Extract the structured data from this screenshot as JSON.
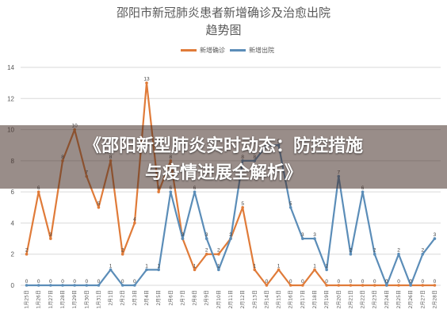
{
  "chart_data": {
    "type": "line",
    "title": "邵阳市新冠肺炎患者新增确诊及治愈出院",
    "subtitle": "趋势图",
    "ylim": [
      0,
      14
    ],
    "yticks": [
      "0",
      "2",
      "4",
      "6",
      "8",
      "10",
      "12",
      "14"
    ],
    "grid": true,
    "legend_position": "top-center",
    "categories": [
      "1月25日",
      "1月26日",
      "1月27日",
      "1月28日",
      "1月29日",
      "1月30日",
      "1月31日",
      "2月1日",
      "2月2日",
      "2月3日",
      "2月4日",
      "2月5日",
      "2月6日",
      "2月7日",
      "2月8日",
      "2月9日",
      "2月10日",
      "2月11日",
      "2月12日",
      "2月13日",
      "2月14日",
      "2月15日",
      "2月16日",
      "2月17日",
      "2月18日",
      "2月19日",
      "2月20日",
      "2月21日",
      "2月22日",
      "2月23日",
      "2月24日",
      "2月25日",
      "2月26日",
      "2月27日",
      "2月28日"
    ],
    "series": [
      {
        "name": "新增确诊",
        "color": "#E07B39",
        "values": [
          2,
          6,
          3,
          8,
          10,
          7,
          5,
          8,
          2,
          4,
          13,
          6,
          8,
          3,
          1,
          2,
          2,
          3,
          5,
          1,
          0,
          1,
          0,
          0,
          1,
          0,
          0,
          0,
          0,
          0,
          0,
          0,
          0,
          0,
          0
        ],
        "labels": [
          "2",
          "6",
          "3",
          "8",
          "10",
          "7",
          "5",
          "8",
          "2",
          "4",
          "13",
          "6",
          "8",
          "3",
          "1",
          "2",
          "2",
          "3",
          "5",
          "1",
          "0",
          "1",
          "0",
          "0",
          "1",
          "0",
          "0",
          "0",
          "0",
          "0",
          "0",
          "0",
          "0",
          "0",
          "0"
        ]
      },
      {
        "name": "新增出院",
        "color": "#5B8DB8",
        "values": [
          0,
          0,
          0,
          0,
          0,
          0,
          0,
          1,
          0,
          0,
          1,
          1,
          6,
          3,
          6,
          3,
          1,
          3,
          8,
          8,
          9,
          9,
          5,
          3,
          3,
          1,
          7,
          2,
          6,
          2,
          0,
          2,
          0,
          2,
          3
        ],
        "labels": [
          "0",
          "0",
          "0",
          "0",
          "0",
          "0",
          "0",
          "1",
          "0",
          "0",
          "1",
          "1",
          "6",
          "3",
          "6",
          "3",
          "1",
          "3",
          "8",
          "8",
          "9",
          "9",
          "5",
          "3",
          "3",
          "1",
          "7",
          "2",
          "6",
          "2",
          "0",
          "2",
          "0",
          "2",
          "3"
        ]
      }
    ]
  },
  "overlay": {
    "line1": "《邵阳新型肺炎实时动态：防控措施",
    "line2": "与疫情进展全解析》"
  }
}
